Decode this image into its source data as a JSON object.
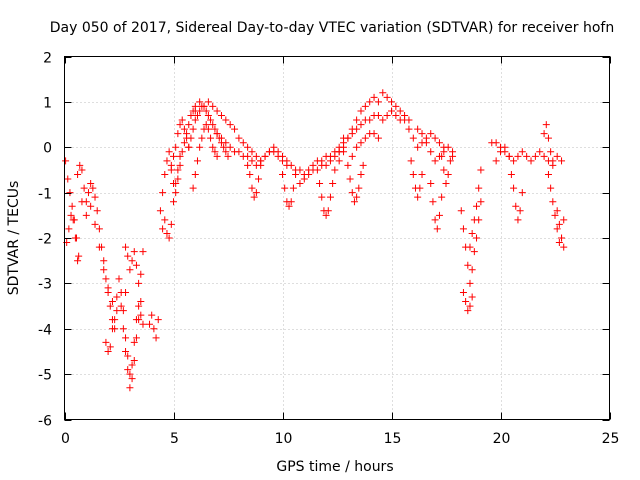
{
  "chart_data": {
    "type": "scatter",
    "title": "Day 050 of 2017, Sidereal Day-to-day VTEC variation (SDTVAR) for receiver hofn",
    "xlabel": "GPS time / hours",
    "ylabel": "SDTVAR / TECUs",
    "xlim": [
      0,
      25
    ],
    "ylim": [
      -6,
      2
    ],
    "xticks": [
      "0",
      "5",
      "10",
      "15",
      "20",
      "25"
    ],
    "yticks": [
      "-6",
      "-5",
      "-4",
      "-3",
      "-2",
      "-1",
      "0",
      "1",
      "2"
    ],
    "grid": true,
    "marker": "plus",
    "color": "#ff0000",
    "series": [
      {
        "name": "SDTVAR",
        "segments": [
          {
            "x": [
              0.05,
              0.15,
              0.25,
              0.35,
              0.45,
              0.55,
              0.65
            ],
            "y": [
              -0.3,
              -0.7,
              -1.0,
              -1.3,
              -1.6,
              -2.0,
              -2.4
            ]
          },
          {
            "x": [
              0.1,
              0.2,
              0.3,
              0.4,
              0.5,
              0.6
            ],
            "y": [
              -2.1,
              -1.8,
              -1.5,
              -1.6,
              -2.0,
              -2.5
            ]
          },
          {
            "x": [
              0.6,
              0.7,
              0.8,
              0.9,
              1.0,
              1.1,
              1.2,
              1.3,
              1.4,
              1.5,
              1.6,
              1.7,
              1.8,
              1.9,
              2.0,
              2.1,
              2.2,
              2.3
            ],
            "y": [
              -0.6,
              -0.4,
              -0.5,
              -0.9,
              -1.2,
              -1.0,
              -0.8,
              -0.9,
              -1.1,
              -1.4,
              -1.8,
              -2.2,
              -2.5,
              -2.9,
              -3.2,
              -3.5,
              -3.8,
              -4.0
            ]
          },
          {
            "x": [
              0.8,
              1.0,
              1.2,
              1.4,
              1.6,
              1.8,
              2.0,
              2.2,
              2.4,
              2.6,
              2.8
            ],
            "y": [
              -1.2,
              -1.5,
              -1.3,
              -1.7,
              -2.2,
              -2.7,
              -3.1,
              -3.4,
              -3.6,
              -3.5,
              -3.2
            ]
          },
          {
            "x": [
              1.9,
              2.0,
              2.1,
              2.2
            ],
            "y": [
              -4.3,
              -4.5,
              -4.4,
              -4.0
            ]
          },
          {
            "x": [
              2.3,
              2.4,
              2.5,
              2.6,
              2.7,
              2.8,
              2.9,
              3.0,
              3.1,
              3.2,
              3.3,
              3.4,
              3.5,
              3.6
            ],
            "y": [
              -3.8,
              -3.3,
              -2.9,
              -3.2,
              -3.6,
              -4.2,
              -4.6,
              -5.0,
              -4.8,
              -4.3,
              -3.8,
              -3.5,
              -3.7,
              -3.9
            ]
          },
          {
            "x": [
              2.7,
              2.8,
              2.9,
              3.0,
              3.1,
              3.2,
              3.3,
              3.4,
              3.5
            ],
            "y": [
              -4.0,
              -4.5,
              -4.9,
              -5.3,
              -5.1,
              -4.7,
              -4.2,
              -3.8,
              -3.4
            ]
          },
          {
            "x": [
              2.8,
              2.9,
              3.0,
              3.1,
              3.2,
              3.3,
              3.4,
              3.5,
              3.6
            ],
            "y": [
              -2.2,
              -2.4,
              -2.7,
              -2.5,
              -2.3,
              -2.6,
              -3.0,
              -2.8,
              -2.3
            ]
          },
          {
            "x": [
              3.9,
              4.0,
              4.1,
              4.2,
              4.3
            ],
            "y": [
              -3.9,
              -3.7,
              -4.0,
              -4.2,
              -3.8
            ]
          },
          {
            "x": [
              4.4,
              4.5,
              4.6,
              4.7,
              4.8,
              4.9,
              5.0,
              5.1,
              5.2,
              5.3,
              5.4,
              5.5,
              5.6,
              5.7,
              5.8,
              5.9,
              6.0
            ],
            "y": [
              -1.4,
              -1.0,
              -0.6,
              -0.3,
              -0.1,
              -0.4,
              -0.8,
              -1.0,
              -0.7,
              -0.4,
              -0.1,
              0.1,
              0.3,
              0.5,
              0.7,
              0.8,
              0.9
            ]
          },
          {
            "x": [
              4.5,
              4.6,
              4.7,
              4.8,
              4.9,
              5.0,
              5.1,
              5.2,
              5.3
            ],
            "y": [
              -1.8,
              -1.6,
              -1.9,
              -2.0,
              -1.7,
              -1.2,
              -0.8,
              -0.5,
              -0.2
            ]
          },
          {
            "x": [
              4.9,
              5.0,
              5.1,
              5.2,
              5.3,
              5.4,
              5.5,
              5.6,
              5.7
            ],
            "y": [
              -0.5,
              -0.2,
              0.0,
              0.3,
              0.5,
              0.6,
              0.4,
              0.2,
              0.0
            ]
          },
          {
            "x": [
              5.7,
              5.8,
              5.9,
              6.0,
              6.1,
              6.2,
              6.3,
              6.4,
              6.5,
              6.6,
              6.7,
              6.8,
              6.9,
              7.0,
              7.1,
              7.2,
              7.3,
              7.4,
              7.5
            ],
            "y": [
              0.0,
              0.2,
              0.4,
              0.6,
              0.7,
              0.8,
              0.9,
              0.9,
              0.8,
              0.7,
              0.6,
              0.5,
              0.4,
              0.3,
              0.2,
              0.1,
              0.0,
              -0.1,
              -0.2
            ]
          },
          {
            "x": [
              5.9,
              6.0,
              6.1,
              6.2,
              6.3,
              6.4,
              6.5,
              6.6,
              6.7,
              6.8,
              6.9,
              7.0
            ],
            "y": [
              -0.9,
              -0.6,
              -0.3,
              0.0,
              0.2,
              0.4,
              0.5,
              0.4,
              0.2,
              0.0,
              -0.1,
              -0.2
            ]
          },
          {
            "x": [
              6.0,
              6.2,
              6.4,
              6.6,
              6.8,
              7.0,
              7.2,
              7.4,
              7.6,
              7.8,
              8.0,
              8.2,
              8.4,
              8.6,
              8.8,
              9.0,
              9.2,
              9.4,
              9.6,
              9.8,
              10.0,
              10.2
            ],
            "y": [
              0.8,
              1.0,
              0.9,
              1.0,
              0.9,
              0.8,
              0.7,
              0.6,
              0.5,
              0.4,
              0.2,
              0.1,
              0.0,
              -0.1,
              -0.2,
              -0.3,
              -0.2,
              -0.1,
              0.0,
              -0.1,
              -0.2,
              -0.3
            ]
          },
          {
            "x": [
              7.0,
              7.2,
              7.4,
              7.6,
              7.8,
              8.0,
              8.2,
              8.4,
              8.6,
              8.8,
              9.0,
              9.2,
              9.4
            ],
            "y": [
              0.3,
              0.2,
              0.1,
              0.0,
              -0.1,
              -0.1,
              -0.2,
              -0.2,
              -0.3,
              -0.4,
              -0.3,
              -0.2,
              -0.1
            ]
          },
          {
            "x": [
              8.4,
              8.5,
              8.6,
              8.7,
              8.8,
              8.9,
              9.0
            ],
            "y": [
              -0.4,
              -0.6,
              -0.9,
              -1.1,
              -1.0,
              -0.7,
              -0.4
            ]
          },
          {
            "x": [
              9.6,
              9.8,
              10.0,
              10.2,
              10.4,
              10.6,
              10.8,
              11.0,
              11.2,
              11.4,
              11.6,
              11.8,
              12.0,
              12.2,
              12.4,
              12.6,
              12.8
            ],
            "y": [
              -0.1,
              -0.2,
              -0.3,
              -0.4,
              -0.4,
              -0.5,
              -0.5,
              -0.6,
              -0.5,
              -0.4,
              -0.3,
              -0.3,
              -0.2,
              -0.2,
              -0.1,
              0.0,
              0.2
            ]
          },
          {
            "x": [
              10.0,
              10.1,
              10.2,
              10.3,
              10.4,
              10.5,
              10.6
            ],
            "y": [
              -0.6,
              -0.9,
              -1.2,
              -1.3,
              -1.2,
              -0.9,
              -0.6
            ]
          },
          {
            "x": [
              10.8,
              11.0,
              11.2,
              11.4,
              11.6,
              11.8,
              12.0,
              12.2,
              12.4,
              12.6,
              12.8
            ],
            "y": [
              -0.8,
              -0.7,
              -0.6,
              -0.5,
              -0.5,
              -0.4,
              -0.4,
              -0.3,
              -0.2,
              -0.1,
              0.0
            ]
          },
          {
            "x": [
              11.7,
              11.8,
              11.9,
              12.0,
              12.1,
              12.2,
              12.3
            ],
            "y": [
              -0.8,
              -1.1,
              -1.4,
              -1.5,
              -1.4,
              -1.1,
              -0.8
            ]
          },
          {
            "x": [
              12.4,
              12.6,
              12.8,
              13.0,
              13.2,
              13.4,
              13.6,
              13.8,
              14.0,
              14.2,
              14.4,
              14.6,
              14.8,
              15.0,
              15.2,
              15.4,
              15.6,
              15.8
            ],
            "y": [
              -0.5,
              -0.3,
              -0.1,
              0.2,
              0.4,
              0.6,
              0.8,
              0.9,
              1.0,
              1.1,
              1.0,
              1.2,
              1.1,
              1.0,
              0.9,
              0.8,
              0.7,
              0.6
            ]
          },
          {
            "x": [
              12.6,
              12.8,
              13.0,
              13.2,
              13.4,
              13.6,
              13.8,
              14.0,
              14.2,
              14.4,
              14.6,
              14.8,
              15.0,
              15.2,
              15.4
            ],
            "y": [
              -0.1,
              0.1,
              0.2,
              0.3,
              0.4,
              0.5,
              0.6,
              0.6,
              0.7,
              0.7,
              0.6,
              0.7,
              0.8,
              0.7,
              0.6
            ]
          },
          {
            "x": [
              13.0,
              13.2,
              13.4,
              13.6,
              13.8,
              14.0,
              14.2,
              14.4
            ],
            "y": [
              -0.4,
              -0.2,
              0.0,
              0.1,
              0.2,
              0.3,
              0.3,
              0.2
            ]
          },
          {
            "x": [
              13.1,
              13.2,
              13.3,
              13.4,
              13.5,
              13.6,
              13.7
            ],
            "y": [
              -0.7,
              -1.0,
              -1.2,
              -1.1,
              -0.9,
              -0.6,
              -0.4
            ]
          },
          {
            "x": [
              15.6,
              15.8,
              16.0,
              16.2,
              16.4,
              16.6,
              16.8,
              17.0,
              17.2,
              17.4
            ],
            "y": [
              0.6,
              0.4,
              0.2,
              0.0,
              0.1,
              0.2,
              0.3,
              0.2,
              0.1,
              0.0
            ]
          },
          {
            "x": [
              15.9,
              16.0,
              16.1,
              16.2,
              16.3,
              16.4
            ],
            "y": [
              -0.3,
              -0.6,
              -0.9,
              -1.1,
              -0.9,
              -0.6
            ]
          },
          {
            "x": [
              16.2,
              16.4,
              16.6,
              16.8,
              17.0,
              17.2,
              17.4,
              17.6,
              17.8
            ],
            "y": [
              0.4,
              0.3,
              0.1,
              -0.1,
              -0.3,
              -0.2,
              -0.1,
              0.0,
              -0.2
            ]
          },
          {
            "x": [
              16.8,
              16.9,
              17.0,
              17.1,
              17.2,
              17.3
            ],
            "y": [
              -0.8,
              -1.2,
              -1.6,
              -1.8,
              -1.5,
              -1.1
            ]
          },
          {
            "x": [
              17.3,
              17.4,
              17.5,
              17.6,
              17.7,
              17.8
            ],
            "y": [
              -0.2,
              -0.5,
              -0.8,
              -0.6,
              -0.3,
              -0.1
            ]
          },
          {
            "x": [
              18.2,
              18.3,
              18.4,
              18.5,
              18.6,
              18.7,
              18.8,
              18.9,
              19.0,
              19.1
            ],
            "y": [
              -1.4,
              -1.8,
              -2.2,
              -2.6,
              -3.0,
              -2.7,
              -2.3,
              -2.0,
              -1.6,
              -1.2
            ]
          },
          {
            "x": [
              18.3,
              18.4,
              18.5,
              18.6,
              18.7
            ],
            "y": [
              -3.2,
              -3.4,
              -3.6,
              -3.5,
              -3.3
            ]
          },
          {
            "x": [
              18.6,
              18.7,
              18.8,
              18.9,
              19.0,
              19.1
            ],
            "y": [
              -2.2,
              -1.9,
              -1.6,
              -1.3,
              -0.9,
              -0.5
            ]
          },
          {
            "x": [
              19.6,
              19.8,
              20.0,
              20.2,
              20.4,
              20.6,
              20.8,
              21.0,
              21.2,
              21.4,
              21.6,
              21.8,
              22.0,
              22.2,
              22.4,
              22.6,
              22.8
            ],
            "y": [
              0.1,
              0.1,
              0.0,
              -0.1,
              -0.2,
              -0.3,
              -0.2,
              -0.1,
              -0.2,
              -0.3,
              -0.2,
              -0.1,
              -0.2,
              -0.3,
              -0.3,
              -0.2,
              -0.3
            ]
          },
          {
            "x": [
              19.8,
              20.0,
              20.2,
              20.4
            ],
            "y": [
              -0.3,
              -0.1,
              0.0,
              -0.2
            ]
          },
          {
            "x": [
              20.5,
              20.6,
              20.7,
              20.8,
              20.9,
              21.0
            ],
            "y": [
              -0.6,
              -0.9,
              -1.3,
              -1.6,
              -1.4,
              -1.0
            ]
          },
          {
            "x": [
              22.0,
              22.1,
              22.2,
              22.3,
              22.4
            ],
            "y": [
              0.3,
              0.5,
              0.2,
              -0.1,
              -0.4
            ]
          },
          {
            "x": [
              22.2,
              22.3,
              22.4,
              22.5,
              22.6,
              22.7,
              22.8,
              22.9
            ],
            "y": [
              -0.6,
              -0.9,
              -1.2,
              -1.5,
              -1.8,
              -2.1,
              -2.0,
              -1.6
            ]
          },
          {
            "x": [
              22.6,
              22.7,
              22.8,
              22.9
            ],
            "y": [
              -1.4,
              -1.7,
              -2.0,
              -2.2
            ]
          }
        ]
      }
    ]
  }
}
